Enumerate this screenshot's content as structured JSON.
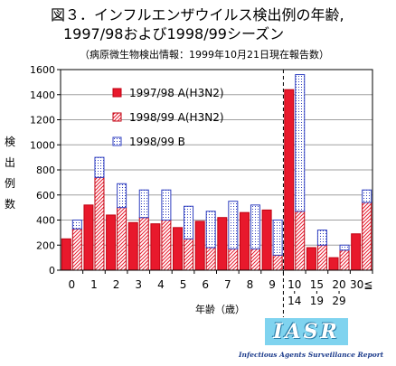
{
  "title_line1": "図３．インフルエンザウイルス検出例の年齢,",
  "title_line2": "1997/98および1998/99シーズン",
  "subtitle": "（病原微生物検出情報：1999年10月21日現在報告数）",
  "ylabel": "検出例数",
  "xlabel": "年齢（歳）",
  "logo": {
    "text": "IASR",
    "subtitle": "Infectious Agents Surveillance Report",
    "color": "#7fd3ef"
  },
  "chart_data": {
    "type": "bar",
    "categories": [
      "0",
      "1",
      "2",
      "3",
      "4",
      "5",
      "6",
      "7",
      "8",
      "9",
      "10-14",
      "15-19",
      "20-29",
      "30≦"
    ],
    "category_labels": [
      [
        "0"
      ],
      [
        "1"
      ],
      [
        "2"
      ],
      [
        "3"
      ],
      [
        "4"
      ],
      [
        "5"
      ],
      [
        "6"
      ],
      [
        "7"
      ],
      [
        "8"
      ],
      [
        "9"
      ],
      [
        "10",
        "14"
      ],
      [
        "15",
        "19"
      ],
      [
        "20",
        "29"
      ],
      [
        "30≦"
      ]
    ],
    "series": [
      {
        "name": "1997/98 A(H3N2)",
        "color": "#e8192c",
        "pattern": "solid",
        "values": [
          250,
          520,
          440,
          380,
          370,
          340,
          390,
          420,
          460,
          480,
          1440,
          180,
          100,
          290
        ]
      },
      {
        "name": "1998/99 A(H3N2)",
        "color": "#e8192c",
        "pattern": "hatched",
        "values": [
          330,
          740,
          500,
          420,
          400,
          250,
          180,
          170,
          170,
          120,
          470,
          200,
          160,
          540
        ],
        "stack": "1998/99"
      },
      {
        "name": "1998/99 B",
        "color": "#3040c0",
        "pattern": "dotted",
        "values": [
          70,
          160,
          190,
          220,
          240,
          260,
          290,
          380,
          350,
          280,
          1090,
          120,
          40,
          100
        ],
        "stack": "1998/99"
      }
    ],
    "ylim": [
      0,
      1600
    ],
    "yticks": [
      0,
      200,
      400,
      600,
      800,
      1000,
      1200,
      1400,
      1600
    ],
    "grid": true,
    "legend_position": "top-left",
    "divider_after": "9"
  }
}
